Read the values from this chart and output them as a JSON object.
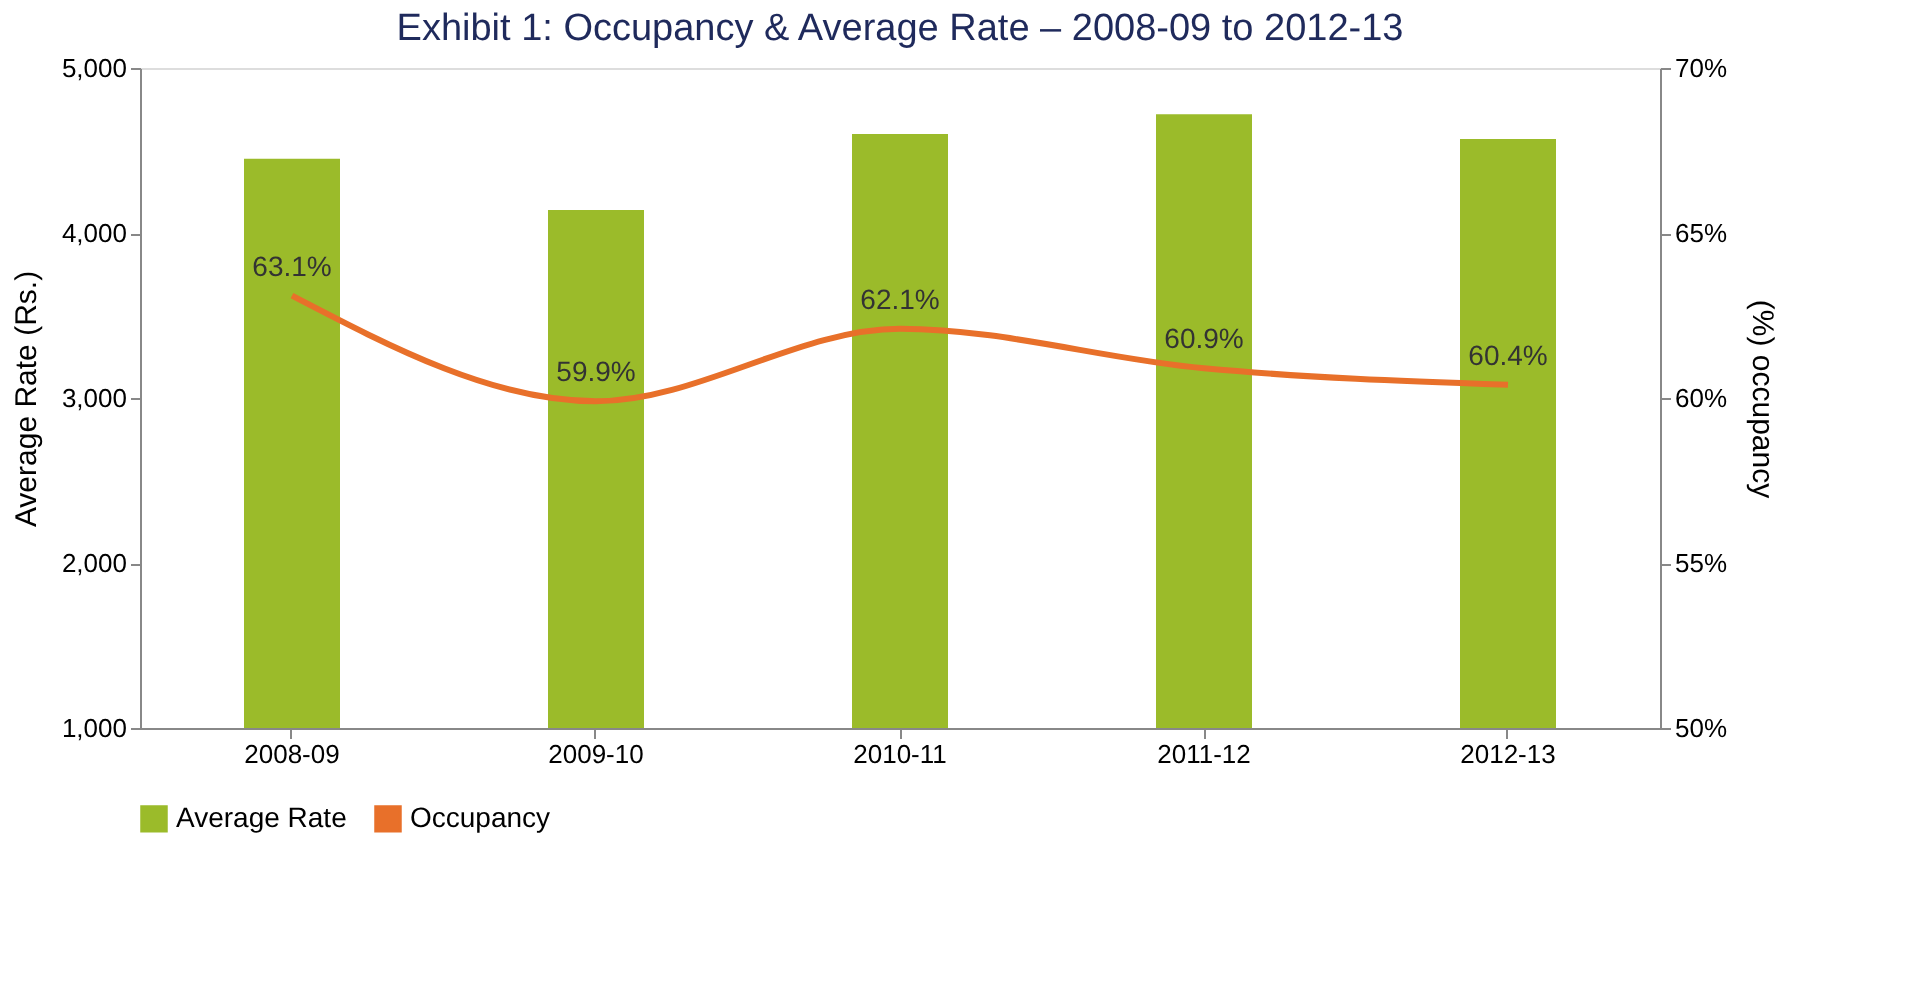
{
  "chart_data": {
    "type": "bar",
    "title": "Exhibit 1: Occupancy & Average Rate – 2008-09 to 2012-13",
    "categories": [
      "2008-09",
      "2009-10",
      "2010-11",
      "2011-12",
      "2012-13"
    ],
    "series": [
      {
        "name": "Average Rate",
        "color": "#9bbb2a",
        "values": [
          4450,
          4140,
          4600,
          4720,
          4570
        ]
      },
      {
        "name": "Occupancy",
        "type": "line",
        "axis": "y2",
        "color": "#e8702a",
        "values": [
          63.1,
          59.9,
          62.1,
          60.9,
          60.4
        ],
        "value_labels": [
          "63.1%",
          "59.9%",
          "62.1%",
          "60.9%",
          "60.4%"
        ]
      }
    ],
    "ylabel": "Average Rate (Rs.)",
    "y2label": "(%) occupancy",
    "ylim": [
      1000,
      5000
    ],
    "yticks": [
      {
        "value": 1000,
        "label": "1,000"
      },
      {
        "value": 2000,
        "label": "2,000"
      },
      {
        "value": 3000,
        "label": "3,000"
      },
      {
        "value": 4000,
        "label": "4,000"
      },
      {
        "value": 5000,
        "label": "5,000"
      }
    ],
    "y2lim": [
      50,
      70
    ],
    "y2ticks": [
      {
        "value": 50,
        "label": "50%"
      },
      {
        "value": 55,
        "label": "55%"
      },
      {
        "value": 60,
        "label": "60%"
      },
      {
        "value": 65,
        "label": "65%"
      },
      {
        "value": 70,
        "label": "70%"
      }
    ],
    "grid": false,
    "legend": "bottom"
  }
}
